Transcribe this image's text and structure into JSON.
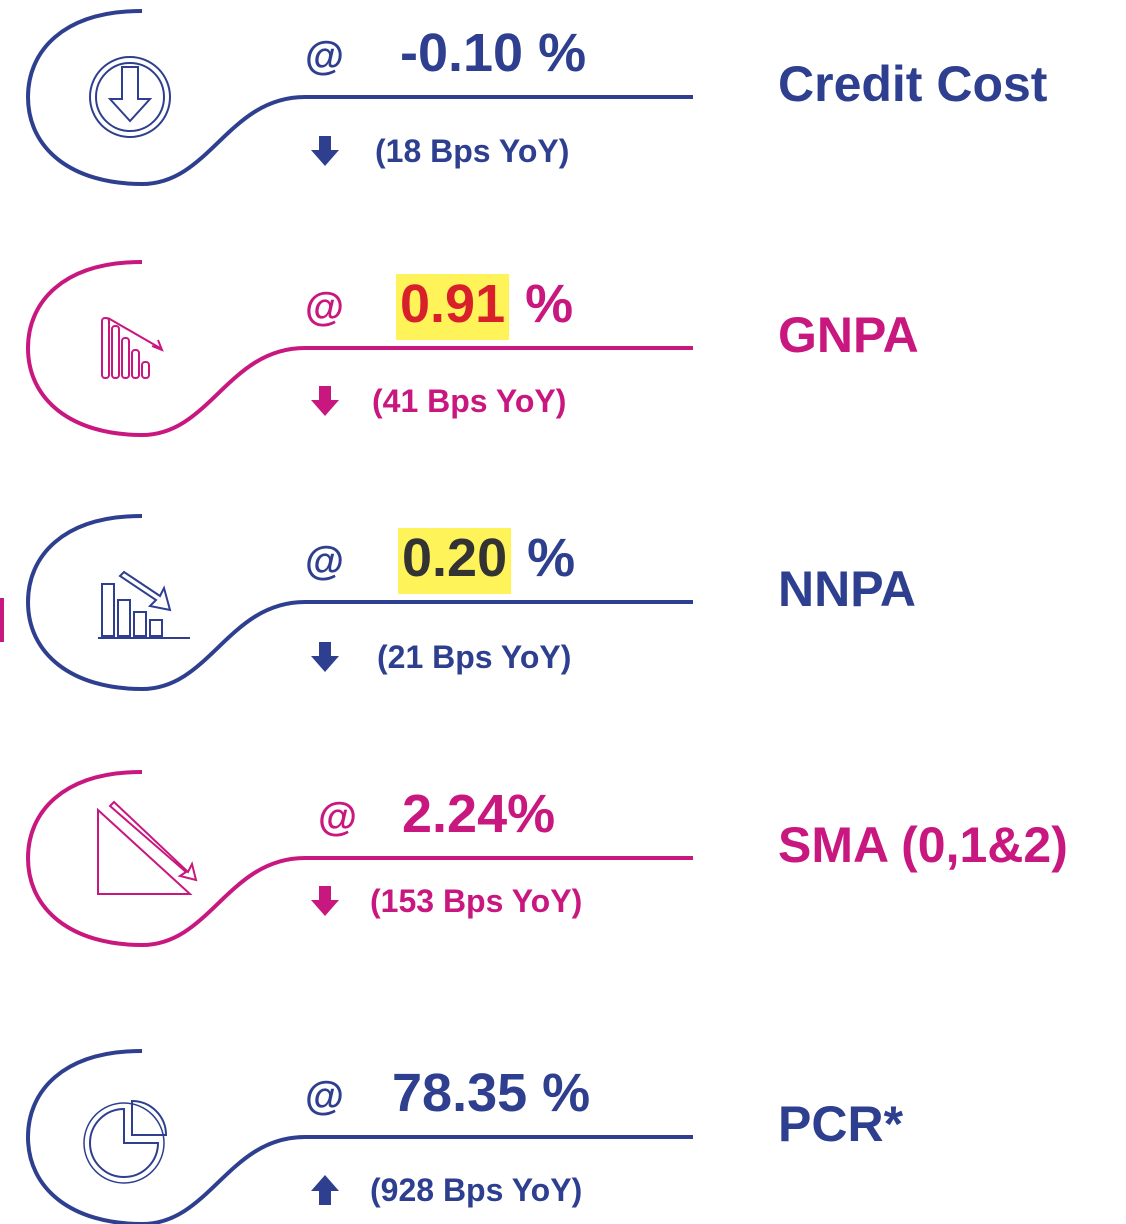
{
  "items": [
    {
      "at": "@",
      "value": "-0.10 %",
      "change": "(18 Bps YoY)",
      "label": "Credit Cost"
    },
    {
      "at": "@",
      "value": "0.91",
      "unit": "%",
      "change": "(41 Bps YoY)",
      "label": "GNPA"
    },
    {
      "at": "@",
      "value": "0.20",
      "unit": "%",
      "change": "(21 Bps YoY)",
      "label": "NNPA"
    },
    {
      "at": "@",
      "value": "2.24%",
      "change": "(153 Bps YoY)",
      "label": "SMA (0,1&2)"
    },
    {
      "at": "@",
      "value": "78.35 %",
      "change": "(928 Bps YoY)",
      "label": "PCR*"
    }
  ]
}
